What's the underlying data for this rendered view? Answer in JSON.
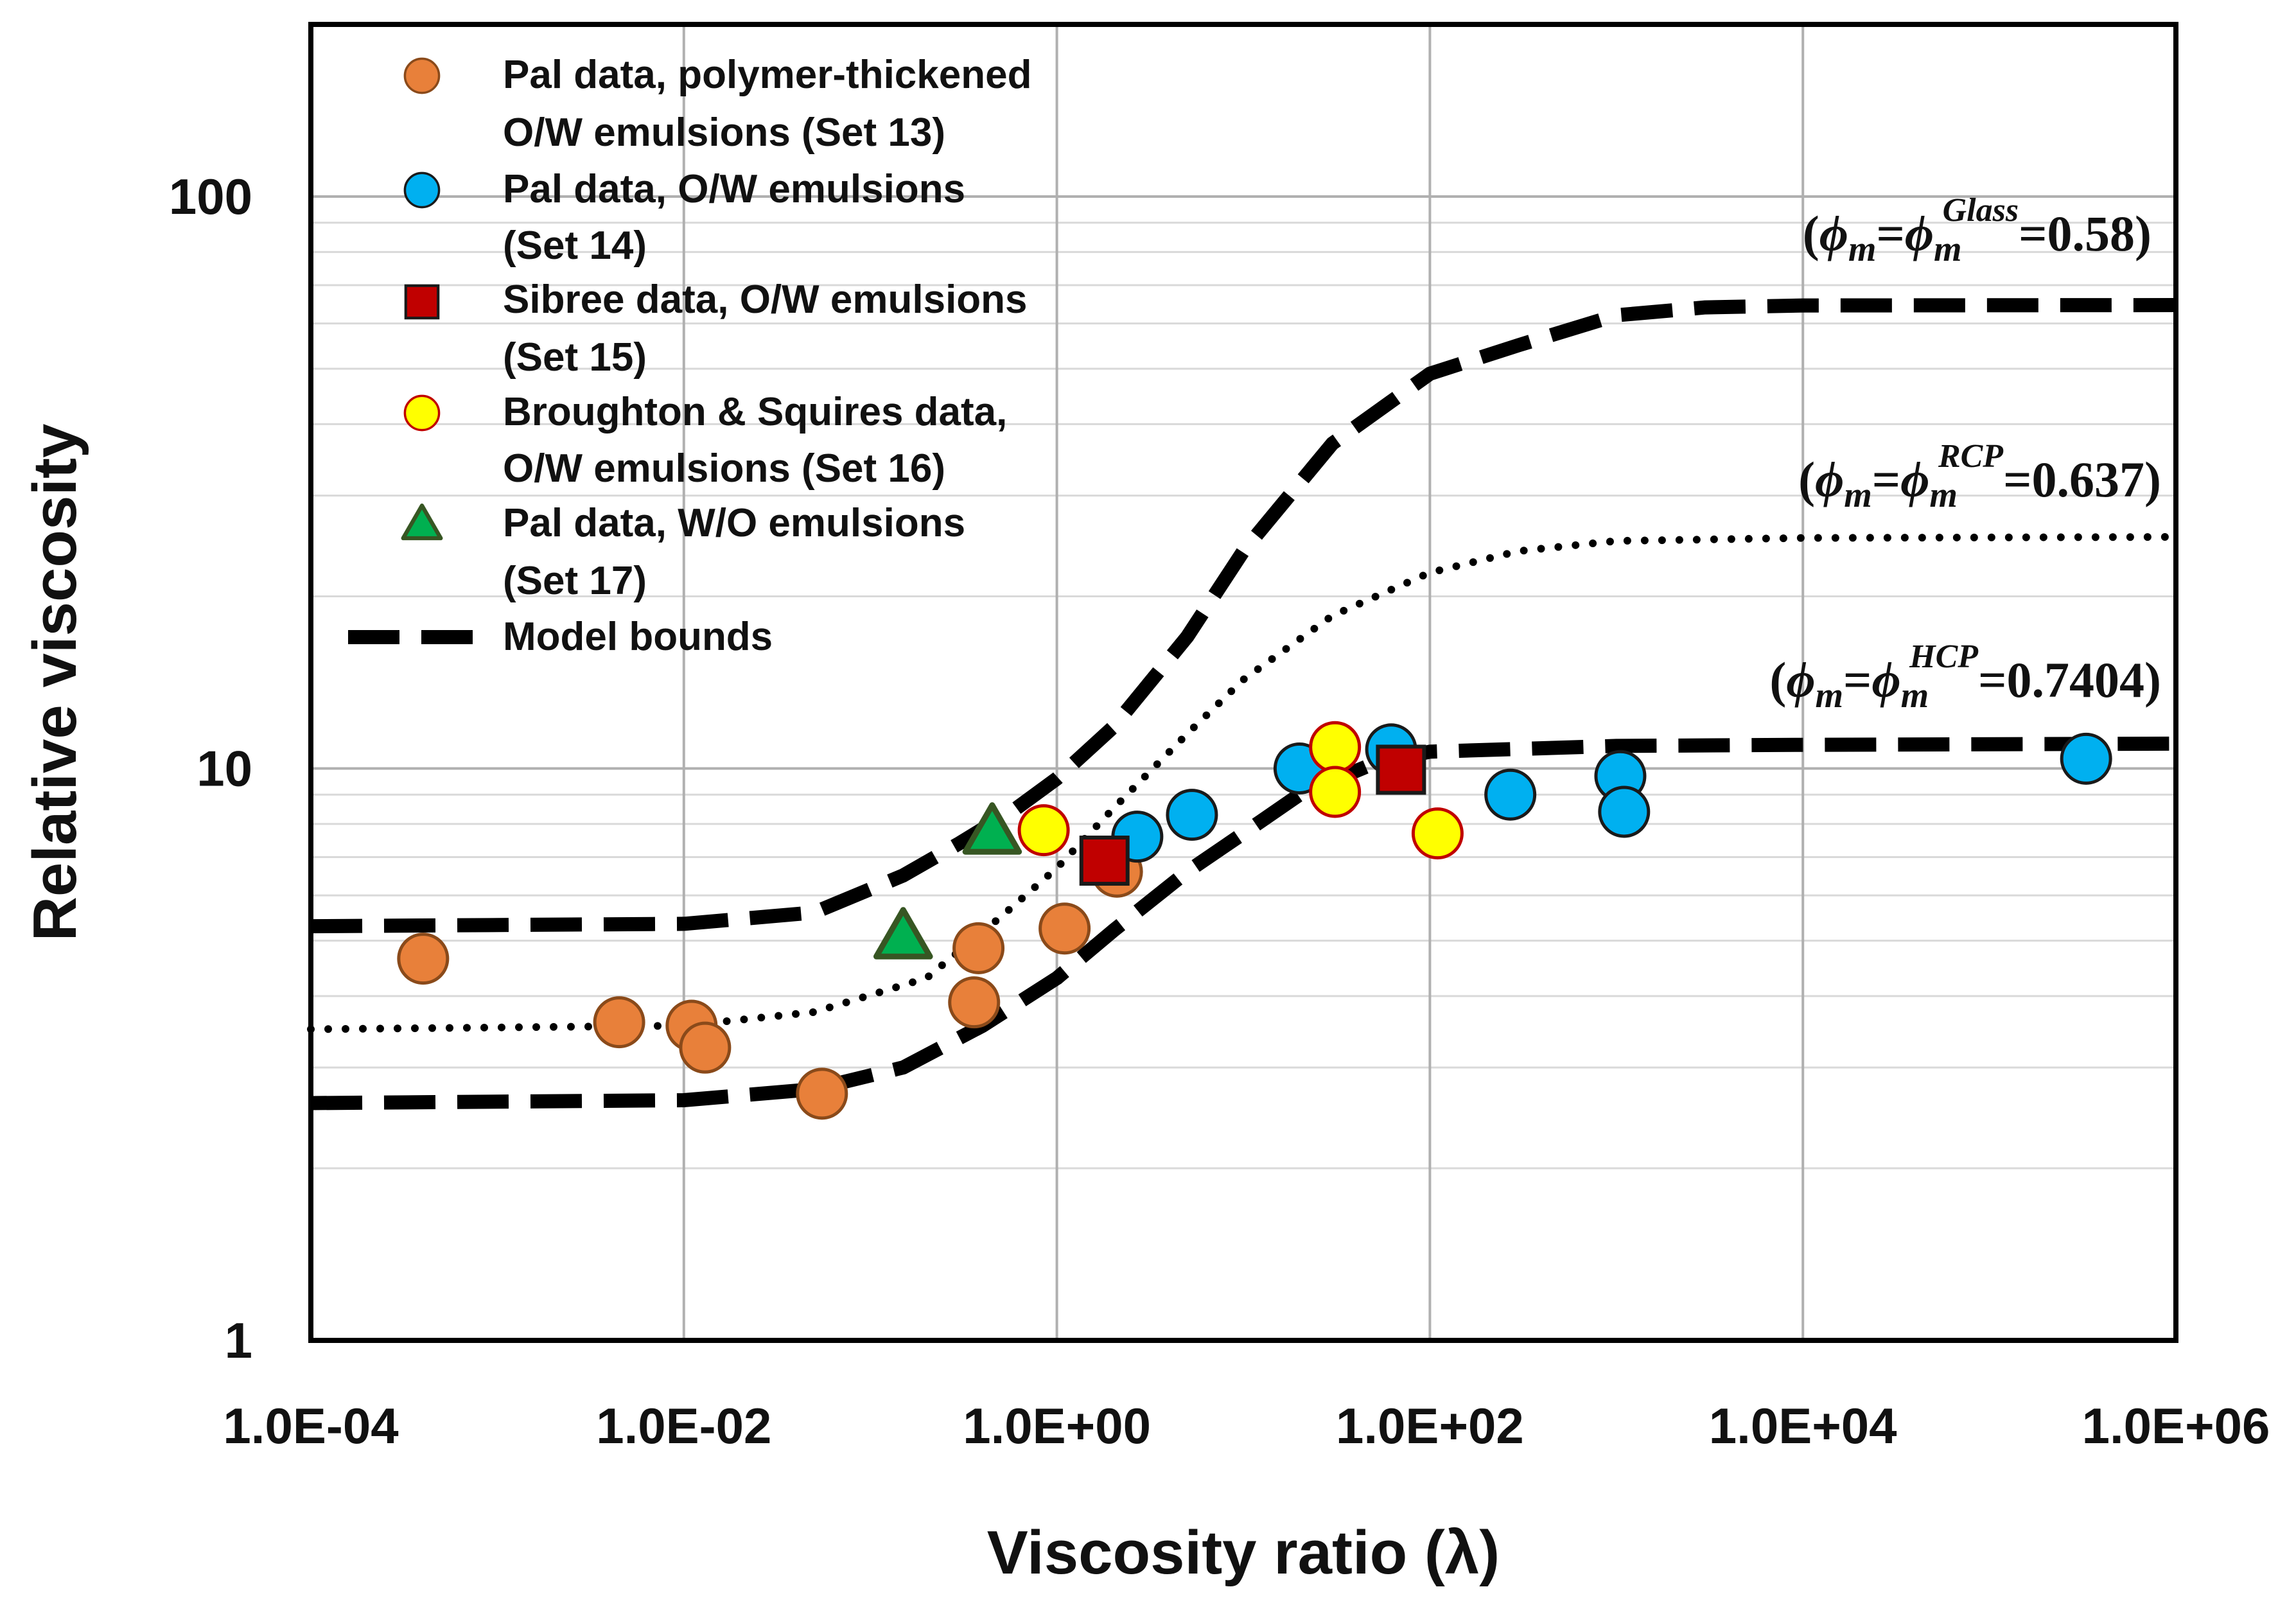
{
  "chart_data": {
    "type": "scatter",
    "title": "",
    "xlabel": "Viscosity ratio (λ)",
    "ylabel": "Relative viscosity",
    "xscale": "log",
    "yscale": "log",
    "xlim": [
      0.0001,
      1000000
    ],
    "ylim": [
      1,
      200
    ],
    "grid": true,
    "legend_position": "top-left",
    "x_ticks": [
      0.0001,
      0.01,
      1,
      100,
      10000,
      1000000
    ],
    "x_tick_labels": [
      "1.0E-04",
      "1.0E-02",
      "1.0E+00",
      "1.0E+02",
      "1.0E+04",
      "1.0E+06"
    ],
    "y_ticks": [
      1,
      10,
      100
    ],
    "y_tick_labels": [
      "1",
      "10",
      "100"
    ],
    "series": [
      {
        "name": "Pal data, polymer-thickened O/W emulsions (Set 13)",
        "legend_lines": [
          "Pal data, polymer-thickened",
          "O/W emulsions (Set 13)"
        ],
        "marker": "circle",
        "fill": "#E8803A",
        "stroke": "#8A4A1A",
        "points": [
          {
            "x": 0.0004,
            "y": 4.65
          },
          {
            "x": 0.0045,
            "y": 3.6
          },
          {
            "x": 0.011,
            "y": 3.55
          },
          {
            "x": 0.013,
            "y": 3.25
          },
          {
            "x": 0.055,
            "y": 2.7
          },
          {
            "x": 0.38,
            "y": 4.85
          },
          {
            "x": 0.36,
            "y": 3.9
          },
          {
            "x": 1.1,
            "y": 5.25
          },
          {
            "x": 2.1,
            "y": 6.6
          }
        ]
      },
      {
        "name": "Pal data, O/W emulsions (Set 14)",
        "legend_lines": [
          "Pal data, O/W emulsions",
          "(Set 14)"
        ],
        "marker": "circle",
        "fill": "#00B0F0",
        "stroke": "#1A1A1A",
        "points": [
          {
            "x": 2.7,
            "y": 7.6
          },
          {
            "x": 5.3,
            "y": 8.3
          },
          {
            "x": 20,
            "y": 10.0
          },
          {
            "x": 62,
            "y": 10.8
          },
          {
            "x": 270,
            "y": 9.0
          },
          {
            "x": 1050,
            "y": 9.7
          },
          {
            "x": 1100,
            "y": 8.4
          },
          {
            "x": 330000,
            "y": 10.4
          }
        ]
      },
      {
        "name": "Sibree data, O/W emulsions (Set 15)",
        "legend_lines": [
          "Sibree data, O/W emulsions",
          "(Set 15)"
        ],
        "marker": "square",
        "fill": "#C00000",
        "stroke": "#1A1A1A",
        "points": [
          {
            "x": 1.8,
            "y": 6.9
          },
          {
            "x": 70,
            "y": 9.95
          }
        ]
      },
      {
        "name": "Broughton & Squires data, O/W emulsions (Set 16)",
        "legend_lines": [
          "Broughton & Squires data,",
          "O/W emulsions (Set 16)"
        ],
        "marker": "circle",
        "fill": "#FFFF00",
        "stroke": "#C00000",
        "points": [
          {
            "x": 0.85,
            "y": 7.8
          },
          {
            "x": 31,
            "y": 10.9
          },
          {
            "x": 31,
            "y": 9.1
          },
          {
            "x": 110,
            "y": 7.7
          }
        ]
      },
      {
        "name": "Pal data, W/O emulsions (Set 17)",
        "legend_lines": [
          "Pal data, W/O emulsions",
          "(Set 17)"
        ],
        "marker": "triangle",
        "fill": "#00B050",
        "stroke": "#375623",
        "points": [
          {
            "x": 0.15,
            "y": 5.05
          },
          {
            "x": 0.45,
            "y": 7.7
          }
        ]
      }
    ],
    "curves": [
      {
        "name": "Model bounds (Glass, upper)",
        "style": "dashed",
        "points": [
          [
            0.0001,
            5.3
          ],
          [
            0.01,
            5.35
          ],
          [
            0.05,
            5.6
          ],
          [
            0.15,
            6.5
          ],
          [
            0.3,
            7.4
          ],
          [
            0.6,
            8.5
          ],
          [
            1,
            9.6
          ],
          [
            2,
            11.8
          ],
          [
            5,
            17
          ],
          [
            10,
            24
          ],
          [
            30,
            37
          ],
          [
            100,
            49
          ],
          [
            300,
            55
          ],
          [
            1000,
            62
          ],
          [
            3000,
            64
          ],
          [
            10000,
            64.5
          ],
          [
            1000000,
            64.6
          ]
        ]
      },
      {
        "name": "RCP curve",
        "style": "dotted",
        "points": [
          [
            0.0001,
            3.5
          ],
          [
            0.01,
            3.55
          ],
          [
            0.05,
            3.75
          ],
          [
            0.2,
            4.3
          ],
          [
            0.5,
            5.5
          ],
          [
            1,
            6.7
          ],
          [
            2,
            8.5
          ],
          [
            5,
            11.5
          ],
          [
            10,
            14.3
          ],
          [
            30,
            18.5
          ],
          [
            100,
            22
          ],
          [
            300,
            24
          ],
          [
            1000,
            25
          ],
          [
            10000,
            25.3
          ],
          [
            1000000,
            25.4
          ]
        ]
      },
      {
        "name": "Model bounds (HCP, lower)",
        "style": "dashed",
        "points": [
          [
            0.0001,
            2.6
          ],
          [
            0.01,
            2.63
          ],
          [
            0.05,
            2.75
          ],
          [
            0.15,
            3.0
          ],
          [
            0.4,
            3.55
          ],
          [
            1,
            4.3
          ],
          [
            2,
            5.2
          ],
          [
            5,
            6.6
          ],
          [
            10,
            7.7
          ],
          [
            20,
            9.0
          ],
          [
            50,
            10.2
          ],
          [
            100,
            10.7
          ],
          [
            1000,
            10.95
          ],
          [
            10000,
            11.0
          ],
          [
            1000000,
            11.05
          ]
        ]
      }
    ],
    "legend": [
      {
        "marker": "circle",
        "series": 0
      },
      {
        "marker": "circle",
        "series": 1
      },
      {
        "marker": "square",
        "series": 2
      },
      {
        "marker": "circle",
        "series": 3
      },
      {
        "marker": "triangle",
        "series": 4
      },
      {
        "marker": "dash-line",
        "label": "Model bounds"
      }
    ],
    "annotations": [
      {
        "id": "glass",
        "label": "(ϕm=ϕmGlass=0.58)",
        "prefix": "(",
        "phi": "ϕ",
        "sub": "m",
        "sup": "Glass",
        "value": "=0.58)"
      },
      {
        "id": "rcp",
        "label": "(ϕm=ϕmRCP=0.637)",
        "prefix": "(",
        "phi": "ϕ",
        "sub": "m",
        "sup": "RCP",
        "value": "=0.637)"
      },
      {
        "id": "hcp",
        "label": "(ϕm=ϕmHCP=0.7404)",
        "prefix": "(",
        "phi": "ϕ",
        "sub": "m",
        "sup": "HCP",
        "value": "=0.7404)"
      }
    ]
  }
}
